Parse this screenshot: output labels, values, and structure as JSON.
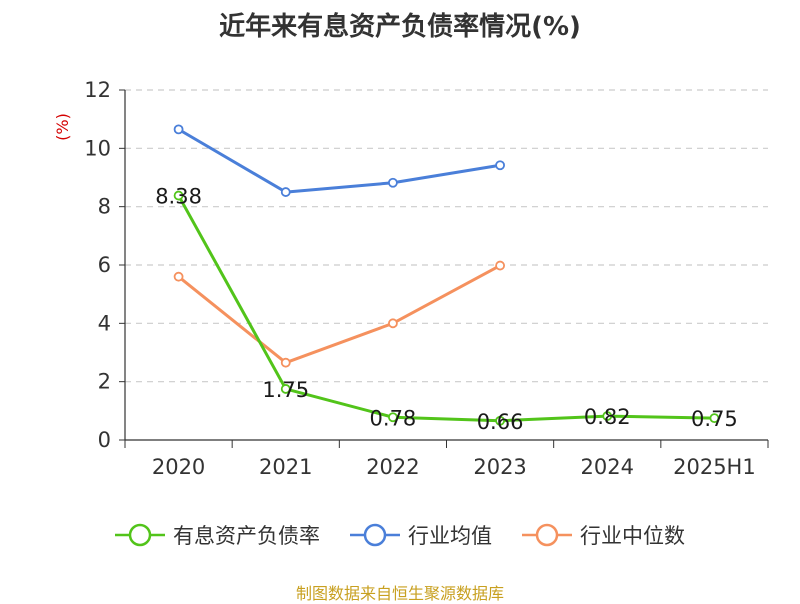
{
  "title": "近年来有息资产负债率情况(%)",
  "source": "制图数据来自恒生聚源数据库",
  "colors": {
    "green": "#52c41a",
    "blue": "#4a7fd9",
    "orange": "#f5915e",
    "ylabel": "#d40000",
    "grid": "#cccccc",
    "axis": "#333333"
  },
  "chart_data": {
    "type": "line",
    "title": "近年来有息资产负债率情况(%)",
    "xlabel": "",
    "ylabel": "(%)",
    "categories": [
      "2020",
      "2021",
      "2022",
      "2023",
      "2024",
      "2025H1"
    ],
    "ylim": [
      0,
      12
    ],
    "yticks": [
      0,
      2,
      4,
      6,
      8,
      10,
      12
    ],
    "grid": true,
    "legend_position": "bottom",
    "series": [
      {
        "name": "有息资产负债率",
        "color": "#52c41a",
        "values": [
          8.38,
          1.75,
          0.78,
          0.66,
          0.82,
          0.75
        ],
        "labels": [
          "8.38",
          "1.75",
          "0.78",
          "0.66",
          "0.82",
          "0.75"
        ]
      },
      {
        "name": "行业均值",
        "color": "#4a7fd9",
        "values": [
          10.65,
          8.5,
          8.82,
          9.42,
          null,
          null
        ]
      },
      {
        "name": "行业中位数",
        "color": "#f5915e",
        "values": [
          5.6,
          2.65,
          4.0,
          5.98,
          null,
          null
        ]
      }
    ]
  }
}
